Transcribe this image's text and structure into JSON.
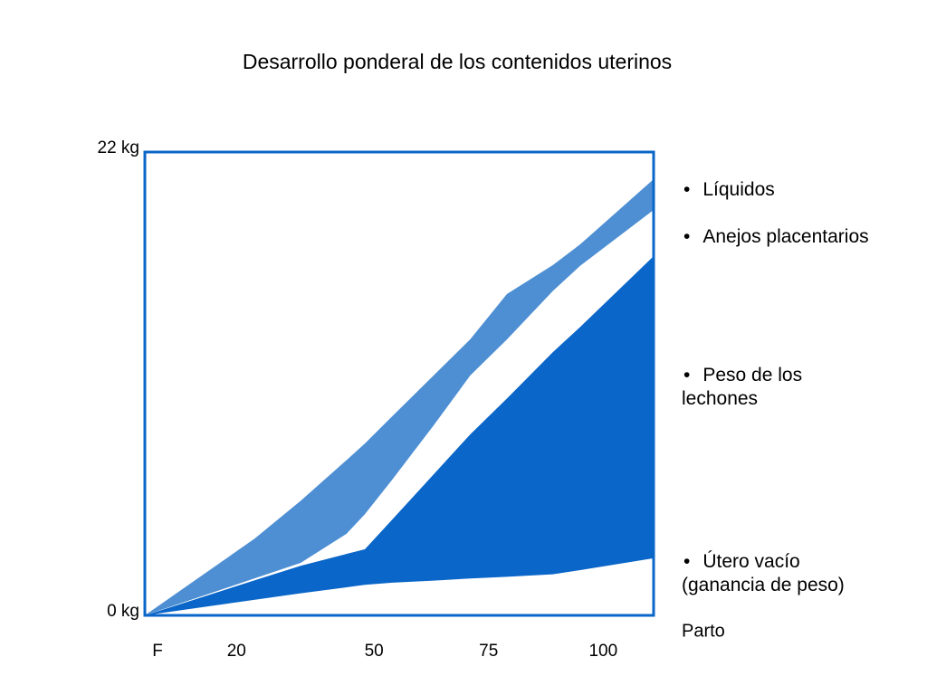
{
  "chart_data": {
    "type": "stacked_area",
    "title": "Desarrollo ponderal de los contenidos uterinos",
    "x": [
      0,
      24,
      34,
      44,
      48,
      54,
      63,
      71,
      79,
      89,
      95,
      111
    ],
    "xlim": [
      0,
      111
    ],
    "xticks": [
      {
        "value": 0,
        "label": "F"
      },
      20,
      50,
      75,
      100
    ],
    "ylim": [
      0,
      22
    ],
    "yticks": [
      {
        "value": 0,
        "label": "0 kg"
      },
      {
        "value": 22,
        "label": "22 kg"
      }
    ],
    "annotation": "Parto",
    "frame_color": "#0a66c8",
    "series": [
      {
        "name": "Útero vacío (ganancia de peso)",
        "color": "#ffffff",
        "values": [
          0,
          0.74,
          1.05,
          1.33,
          1.45,
          1.55,
          1.65,
          1.75,
          1.83,
          1.95,
          2.15,
          2.71
        ]
      },
      {
        "name": "Peso de los lechones",
        "color": "#0a66c8",
        "values": [
          0,
          0.93,
          1.31,
          1.59,
          1.69,
          3.01,
          5.05,
          6.85,
          8.47,
          10.55,
          11.55,
          14.35
        ]
      },
      {
        "name": "Anejos placentarios",
        "color": "#ffffff",
        "values": [
          0,
          0.09,
          0.13,
          0.95,
          1.66,
          1.89,
          2.32,
          2.79,
          2.8,
          2.9,
          2.9,
          2.19
        ]
      },
      {
        "name": "Líquidos",
        "color": "#4e8fd3",
        "values": [
          0,
          1.89,
          2.95,
          3.5,
          3.36,
          3.01,
          2.37,
          1.72,
          2.16,
          1.23,
          1.02,
          1.46
        ]
      }
    ]
  }
}
